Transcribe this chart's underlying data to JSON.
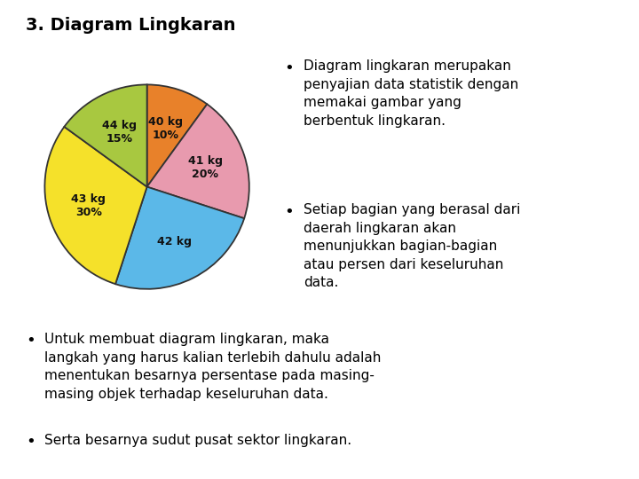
{
  "title": "3. Diagram Lingkaran",
  "slices": [
    {
      "label": "40 kg",
      "label2": "10%",
      "value": 10,
      "color": "#E8812A"
    },
    {
      "label": "41 kg",
      "label2": "20%",
      "value": 20,
      "color": "#E89AAE"
    },
    {
      "label": "42 kg",
      "label2": "",
      "value": 25,
      "color": "#5BB8E8"
    },
    {
      "label": "43 kg",
      "label2": "30%",
      "value": 30,
      "color": "#F5E12A"
    },
    {
      "label": "44 kg",
      "label2": "15%",
      "value": 15,
      "color": "#A8C840"
    }
  ],
  "bullet1": "Diagram lingkaran merupakan\npenyajian data statistik dengan\nmemakai gambar yang\nberbentuk lingkaran.",
  "bullet2": "Setiap bagian yang berasal dari\ndaerah lingkaran akan\nmenunjukkan bagian-bagian\natau persen dari keseluruhan\ndata.",
  "bullet3_line1": "Untuk membuat diagram lingkaran, maka",
  "bullet3_line2": "langkah yang harus kalian terlebih dahulu adalah",
  "bullet3_line3": "menentukan besarnya persentase pada masing-",
  "bullet3_line4": "masing objek terhadap keseluruhan data.",
  "bullet4": "Serta besarnya sudut pusat sektor lingkaran.",
  "bg_color": "#ffffff",
  "text_color": "#000000",
  "pie_edge_color": "#333333",
  "title_fontsize": 14,
  "body_fontsize": 11,
  "label_fontsize": 9
}
